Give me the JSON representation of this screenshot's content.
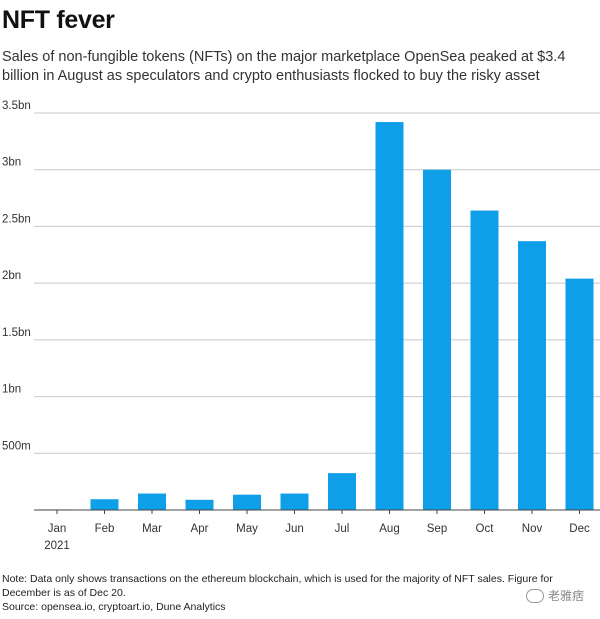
{
  "header": {
    "title": "NFT fever",
    "subtitle": "Sales of non-fungible tokens (NFTs) on the major marketplace OpenSea peaked at $3.4 billion in August as speculators and crypto enthusiasts flocked to buy the risky asset"
  },
  "chart_data": {
    "type": "bar",
    "categories": [
      "Jan",
      "Feb",
      "Mar",
      "Apr",
      "May",
      "Jun",
      "Jul",
      "Aug",
      "Sep",
      "Oct",
      "Nov",
      "Dec"
    ],
    "category_sublabels": [
      "2021",
      "",
      "",
      "",
      "",
      "",
      "",
      "",
      "",
      "",
      "",
      ""
    ],
    "values": [
      0.005,
      0.095,
      0.145,
      0.09,
      0.135,
      0.145,
      0.325,
      3.42,
      3.0,
      2.64,
      2.37,
      2.04
    ],
    "value_unit": "billion USD",
    "ylim": [
      0,
      3.5
    ],
    "yticks": [
      0.5,
      1,
      1.5,
      2,
      2.5,
      3,
      3.5
    ],
    "ytick_labels": [
      "500m",
      "1bn",
      "1.5bn",
      "2bn",
      "2.5bn",
      "3bn",
      "3.5bn"
    ],
    "grid": true,
    "bar_color": "#0f9ee8",
    "gridline_color": "#c8c8c8"
  },
  "footer": {
    "note": "Note: Data only shows transactions on the ethereum blockchain, which is used for the majority of NFT sales. Figure for December is as of Dec 20.",
    "source": "Source: opensea.io, cryptoart.io, Dune Analytics",
    "watermark_text": "老雅痞",
    "watermark_icon": "wechat-icon"
  }
}
